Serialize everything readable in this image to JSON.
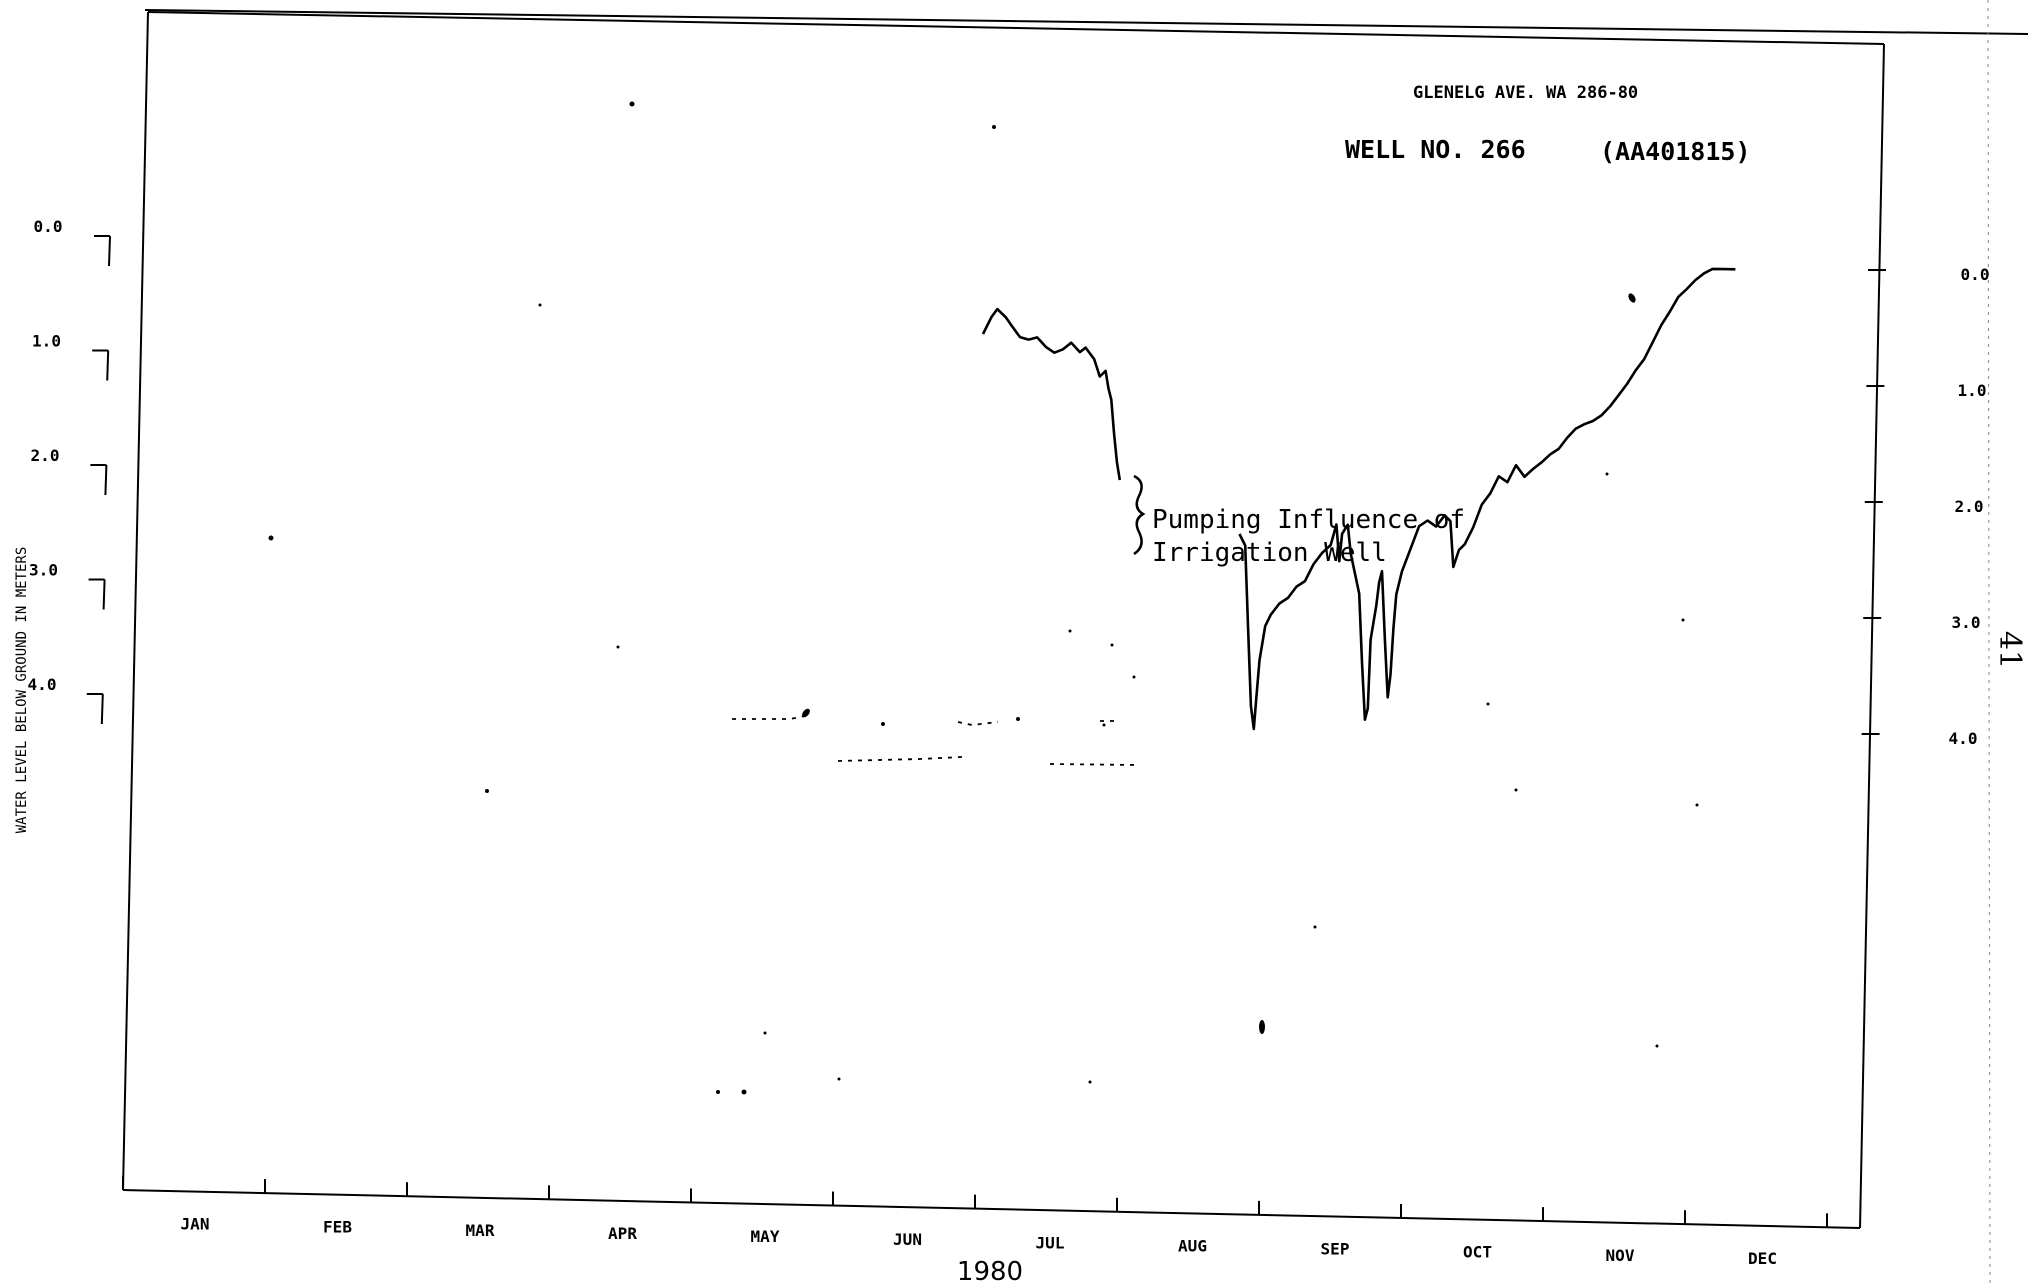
{
  "chart_data": {
    "type": "line",
    "header_line1": "GLENELG AVE. WA 286-80",
    "header_line2": "WELL NO. 266",
    "header_id": "(AA401815)",
    "ylabel": "WATER LEVEL BELOW GROUND IN METERS",
    "xlabel": "1980",
    "page_number": "41",
    "annotation_line1": "Pumping Influence of",
    "annotation_line2": "Irrigation Well",
    "y_ticks": [
      "0.0",
      "1.0",
      "2.0",
      "3.0",
      "4.0"
    ],
    "y_ticks_right": [
      "0.0",
      "1.0",
      "2.0",
      "3.0",
      "4.0"
    ],
    "y_range": [
      -2.0,
      6.0
    ],
    "y_inverted": true,
    "x_range_months": [
      0,
      12
    ],
    "months": [
      "JAN",
      "FEB",
      "MAR",
      "APR",
      "MAY",
      "JUN",
      "JUL",
      "AUG",
      "SEP",
      "OCT",
      "NOV",
      "DEC"
    ],
    "grid": false,
    "series": [
      {
        "points": [
          [
            6.0,
            0.7
          ],
          [
            6.06,
            0.55
          ],
          [
            6.1,
            0.48
          ],
          [
            6.16,
            0.55
          ],
          [
            6.2,
            0.62
          ],
          [
            6.26,
            0.72
          ],
          [
            6.32,
            0.74
          ],
          [
            6.38,
            0.72
          ],
          [
            6.44,
            0.8
          ],
          [
            6.5,
            0.85
          ],
          [
            6.56,
            0.82
          ],
          [
            6.62,
            0.76
          ],
          [
            6.68,
            0.84
          ],
          [
            6.72,
            0.8
          ],
          [
            6.78,
            0.9
          ],
          [
            6.82,
            1.05
          ],
          [
            6.86,
            1.0
          ],
          [
            6.88,
            1.15
          ],
          [
            6.9,
            1.25
          ],
          [
            6.92,
            1.55
          ],
          [
            6.94,
            1.8
          ],
          [
            6.96,
            1.95
          ]
        ]
      },
      {
        "points": [
          [
            7.8,
            2.4
          ],
          [
            7.84,
            2.5
          ],
          [
            7.86,
            3.2
          ],
          [
            7.88,
            3.9
          ],
          [
            7.9,
            4.1
          ],
          [
            7.92,
            3.8
          ],
          [
            7.94,
            3.5
          ],
          [
            7.98,
            3.2
          ],
          [
            8.02,
            3.1
          ],
          [
            8.08,
            3.0
          ],
          [
            8.14,
            2.95
          ],
          [
            8.2,
            2.85
          ],
          [
            8.26,
            2.8
          ],
          [
            8.32,
            2.65
          ],
          [
            8.38,
            2.55
          ],
          [
            8.44,
            2.48
          ],
          [
            8.48,
            2.3
          ],
          [
            8.5,
            2.62
          ],
          [
            8.52,
            2.38
          ],
          [
            8.56,
            2.3
          ],
          [
            8.58,
            2.55
          ],
          [
            8.64,
            2.9
          ],
          [
            8.66,
            3.5
          ],
          [
            8.68,
            4.0
          ],
          [
            8.7,
            3.9
          ],
          [
            8.72,
            3.3
          ],
          [
            8.76,
            3.0
          ],
          [
            8.78,
            2.8
          ],
          [
            8.8,
            2.7
          ],
          [
            8.82,
            3.3
          ],
          [
            8.84,
            3.8
          ],
          [
            8.86,
            3.6
          ],
          [
            8.88,
            3.2
          ],
          [
            8.9,
            2.9
          ],
          [
            8.94,
            2.7
          ],
          [
            9.0,
            2.5
          ],
          [
            9.06,
            2.3
          ],
          [
            9.12,
            2.25
          ],
          [
            9.18,
            2.3
          ],
          [
            9.24,
            2.2
          ],
          [
            9.28,
            2.25
          ],
          [
            9.3,
            2.65
          ],
          [
            9.34,
            2.5
          ],
          [
            9.38,
            2.45
          ],
          [
            9.44,
            2.3
          ],
          [
            9.5,
            2.1
          ],
          [
            9.56,
            2.0
          ],
          [
            9.62,
            1.85
          ],
          [
            9.68,
            1.9
          ],
          [
            9.74,
            1.75
          ],
          [
            9.8,
            1.85
          ],
          [
            9.86,
            1.78
          ],
          [
            9.92,
            1.72
          ],
          [
            9.98,
            1.65
          ],
          [
            10.04,
            1.6
          ],
          [
            10.1,
            1.5
          ],
          [
            10.16,
            1.42
          ],
          [
            10.22,
            1.38
          ],
          [
            10.28,
            1.35
          ],
          [
            10.34,
            1.3
          ],
          [
            10.4,
            1.22
          ],
          [
            10.46,
            1.12
          ],
          [
            10.52,
            1.02
          ],
          [
            10.58,
            0.9
          ],
          [
            10.64,
            0.8
          ],
          [
            10.7,
            0.65
          ],
          [
            10.76,
            0.5
          ],
          [
            10.82,
            0.38
          ],
          [
            10.88,
            0.25
          ],
          [
            10.94,
            0.18
          ],
          [
            11.0,
            0.1
          ],
          [
            11.06,
            0.04
          ],
          [
            11.12,
            0.0
          ],
          [
            11.2,
            0.0
          ],
          [
            11.28,
            0.0
          ]
        ]
      }
    ]
  }
}
